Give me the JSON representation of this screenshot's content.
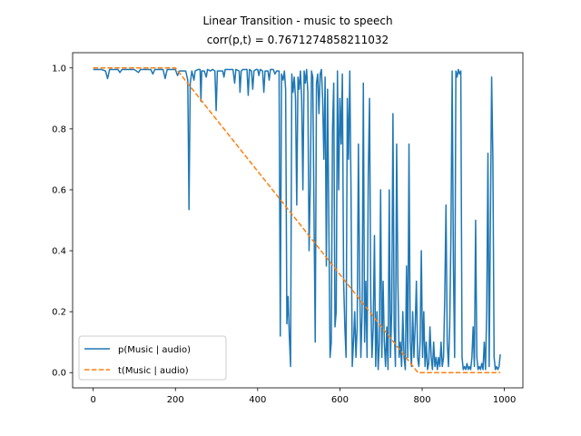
{
  "chart_data": {
    "type": "line",
    "title": "Linear Transition - music to speech",
    "subtitle": "corr(p,t) = 0.7671274858211032",
    "xlabel": "",
    "ylabel": "",
    "xlim": [
      -50,
      1045
    ],
    "ylim": [
      -0.05,
      1.05
    ],
    "x_ticks": [
      0,
      200,
      400,
      600,
      800,
      1000
    ],
    "y_ticks": [
      0.0,
      0.2,
      0.4,
      0.6,
      0.8,
      1.0
    ],
    "x_tick_labels": [
      "0",
      "200",
      "400",
      "600",
      "800",
      "1000"
    ],
    "y_tick_labels": [
      "0.0",
      "0.2",
      "0.4",
      "0.6",
      "0.8",
      "1.0"
    ],
    "grid": false,
    "legend_position": "lower-left",
    "series": [
      {
        "name": "p(Music | audio)",
        "color": "#1f77b4",
        "style": "solid",
        "points": [
          [
            0,
            0.995
          ],
          [
            20,
            0.995
          ],
          [
            30,
            0.99
          ],
          [
            35,
            0.965
          ],
          [
            40,
            0.995
          ],
          [
            60,
            0.995
          ],
          [
            65,
            0.985
          ],
          [
            70,
            0.995
          ],
          [
            100,
            0.995
          ],
          [
            110,
            0.985
          ],
          [
            115,
            0.995
          ],
          [
            140,
            0.995
          ],
          [
            145,
            0.98
          ],
          [
            150,
            0.995
          ],
          [
            170,
            0.995
          ],
          [
            175,
            0.965
          ],
          [
            180,
            0.995
          ],
          [
            200,
            0.995
          ],
          [
            205,
            0.975
          ],
          [
            210,
            0.99
          ],
          [
            225,
            0.99
          ],
          [
            230,
            0.96
          ],
          [
            233,
            0.535
          ],
          [
            236,
            0.95
          ],
          [
            240,
            0.99
          ],
          [
            245,
            0.96
          ],
          [
            248,
            0.99
          ],
          [
            255,
            0.995
          ],
          [
            260,
            0.995
          ],
          [
            262,
            0.89
          ],
          [
            264,
            0.99
          ],
          [
            270,
            0.99
          ],
          [
            275,
            0.97
          ],
          [
            278,
            0.995
          ],
          [
            285,
            0.99
          ],
          [
            290,
            0.995
          ],
          [
            296,
            0.99
          ],
          [
            299,
            0.86
          ],
          [
            302,
            0.99
          ],
          [
            315,
            0.99
          ],
          [
            318,
            0.97
          ],
          [
            321,
            0.995
          ],
          [
            340,
            0.995
          ],
          [
            344,
            0.95
          ],
          [
            347,
            0.995
          ],
          [
            355,
            0.99
          ],
          [
            357,
            0.92
          ],
          [
            360,
            0.99
          ],
          [
            364,
            0.995
          ],
          [
            374,
            0.995
          ],
          [
            377,
            0.91
          ],
          [
            380,
            0.995
          ],
          [
            385,
            0.99
          ],
          [
            388,
            0.93
          ],
          [
            391,
            0.99
          ],
          [
            396,
            0.995
          ],
          [
            400,
            0.995
          ],
          [
            403,
            0.975
          ],
          [
            406,
            0.995
          ],
          [
            412,
            0.99
          ],
          [
            415,
            0.92
          ],
          [
            418,
            0.99
          ],
          [
            425,
            0.99
          ],
          [
            428,
            0.96
          ],
          [
            431,
            0.995
          ],
          [
            438,
            0.995
          ],
          [
            442,
            0.98
          ],
          [
            446,
            0.99
          ],
          [
            452,
            0.99
          ],
          [
            455,
            0.12
          ],
          [
            458,
            0.98
          ],
          [
            462,
            0.96
          ],
          [
            465,
            0.99
          ],
          [
            468,
            0.93
          ],
          [
            471,
            0.16
          ],
          [
            474,
            0.25
          ],
          [
            477,
            0.12
          ],
          [
            480,
            0.02
          ],
          [
            483,
            0.98
          ],
          [
            486,
            0.92
          ],
          [
            489,
            0.97
          ],
          [
            492,
            0.9
          ],
          [
            495,
            0.55
          ],
          [
            498,
            0.97
          ],
          [
            501,
            0.93
          ],
          [
            504,
            0.99
          ],
          [
            507,
            0.9
          ],
          [
            510,
            0.6
          ],
          [
            513,
            0.99
          ],
          [
            516,
            0.95
          ],
          [
            519,
            0.995
          ],
          [
            522,
            0.92
          ],
          [
            525,
            0.4
          ],
          [
            528,
            0.62
          ],
          [
            531,
            0.99
          ],
          [
            534,
            0.97
          ],
          [
            537,
            0.52
          ],
          [
            540,
            0.1
          ],
          [
            543,
            0.95
          ],
          [
            546,
            0.98
          ],
          [
            549,
            0.85
          ],
          [
            552,
            0.98
          ],
          [
            555,
            0.995
          ],
          [
            558,
            0.9
          ],
          [
            561,
            0.7
          ],
          [
            564,
            0.97
          ],
          [
            567,
            0.35
          ],
          [
            570,
            0.93
          ],
          [
            573,
            0.5
          ],
          [
            576,
            0.05
          ],
          [
            579,
            0.1
          ],
          [
            582,
            0.8
          ],
          [
            585,
            0.95
          ],
          [
            588,
            0.15
          ],
          [
            591,
            0.2
          ],
          [
            594,
            0.99
          ],
          [
            597,
            0.6
          ],
          [
            600,
            0.9
          ],
          [
            603,
            0.75
          ],
          [
            606,
            0.98
          ],
          [
            609,
            0.3
          ],
          [
            612,
            0.15
          ],
          [
            615,
            0.05
          ],
          [
            618,
            0.9
          ],
          [
            621,
            0.7
          ],
          [
            624,
            0.99
          ],
          [
            627,
            0.6
          ],
          [
            630,
            0.02
          ],
          [
            633,
            0.1
          ],
          [
            636,
            0.2
          ],
          [
            639,
            0.05
          ],
          [
            642,
            0.15
          ],
          [
            645,
            0.75
          ],
          [
            648,
            0.3
          ],
          [
            651,
            0.05
          ],
          [
            654,
            0.2
          ],
          [
            657,
            0.95
          ],
          [
            660,
            0.1
          ],
          [
            663,
            0.3
          ],
          [
            666,
            0.05
          ],
          [
            669,
            0.65
          ],
          [
            672,
            0.9
          ],
          [
            675,
            0.25
          ],
          [
            678,
            0.05
          ],
          [
            681,
            0.15
          ],
          [
            684,
            0.45
          ],
          [
            687,
            0.02
          ],
          [
            690,
            0.2
          ],
          [
            693,
            0.01
          ],
          [
            696,
            0.1
          ],
          [
            699,
            0.6
          ],
          [
            702,
            0.05
          ],
          [
            705,
            0.3
          ],
          [
            708,
            0.1
          ],
          [
            711,
            0.02
          ],
          [
            714,
            0.15
          ],
          [
            717,
            0.01
          ],
          [
            720,
            0.6
          ],
          [
            723,
            0.05
          ],
          [
            726,
            0.2
          ],
          [
            729,
            0.85
          ],
          [
            732,
            0.15
          ],
          [
            735,
            0.02
          ],
          [
            738,
            0.75
          ],
          [
            741,
            0.3
          ],
          [
            744,
            0.05
          ],
          [
            747,
            0.1
          ],
          [
            750,
            0.02
          ],
          [
            753,
            0.2
          ],
          [
            756,
            0.05
          ],
          [
            759,
            0.01
          ],
          [
            762,
            0.35
          ],
          [
            765,
            0.05
          ],
          [
            768,
            0.75
          ],
          [
            771,
            0.1
          ],
          [
            774,
            0.02
          ],
          [
            777,
            0.2
          ],
          [
            780,
            0.05
          ],
          [
            783,
            0.15
          ],
          [
            786,
            0.3
          ],
          [
            789,
            0.05
          ],
          [
            792,
            0.02
          ],
          [
            795,
            0.1
          ],
          [
            798,
            0.4
          ],
          [
            801,
            0.05
          ],
          [
            804,
            0.2
          ],
          [
            807,
            0.02
          ],
          [
            810,
            0.1
          ],
          [
            813,
            0.01
          ],
          [
            816,
            0.03
          ],
          [
            819,
            0.15
          ],
          [
            822,
            0.05
          ],
          [
            825,
            0.01
          ],
          [
            828,
            0.1
          ],
          [
            831,
            0.02
          ],
          [
            834,
            0.05
          ],
          [
            837,
            0.01
          ],
          [
            840,
            0.05
          ],
          [
            843,
            0.02
          ],
          [
            846,
            0.1
          ],
          [
            849,
            0.02
          ],
          [
            852,
            0.05
          ],
          [
            855,
            0.25
          ],
          [
            858,
            0.55
          ],
          [
            861,
            0.1
          ],
          [
            864,
            0.02
          ],
          [
            867,
            0.15
          ],
          [
            870,
            0.45
          ],
          [
            873,
            0.99
          ],
          [
            876,
            0.35
          ],
          [
            879,
            0.05
          ],
          [
            882,
            0.99
          ],
          [
            885,
            0.97
          ],
          [
            888,
            0.995
          ],
          [
            891,
            0.98
          ],
          [
            894,
            0.99
          ],
          [
            897,
            0.05
          ],
          [
            900,
            0.01
          ],
          [
            903,
            0.02
          ],
          [
            906,
            0.01
          ],
          [
            909,
            0.03
          ],
          [
            912,
            0.01
          ],
          [
            915,
            0.02
          ],
          [
            918,
            0.01
          ],
          [
            921,
            0.05
          ],
          [
            924,
            0.15
          ],
          [
            927,
            0.02
          ],
          [
            930,
            0.5
          ],
          [
            933,
            0.05
          ],
          [
            936,
            0.01
          ],
          [
            939,
            0.02
          ],
          [
            942,
            0.01
          ],
          [
            945,
            0.03
          ],
          [
            948,
            0.01
          ],
          [
            951,
            0.1
          ],
          [
            954,
            0.01
          ],
          [
            957,
            0.2
          ],
          [
            960,
            0.72
          ],
          [
            963,
            0.02
          ],
          [
            966,
            0.5
          ],
          [
            969,
            0.97
          ],
          [
            972,
            0.7
          ],
          [
            975,
            0.05
          ],
          [
            978,
            0.01
          ],
          [
            981,
            0.02
          ],
          [
            984,
            0.01
          ],
          [
            987,
            0.02
          ],
          [
            990,
            0.06
          ]
        ]
      },
      {
        "name": "t(Music | audio)",
        "color": "#ff7f0e",
        "style": "dashed",
        "points": [
          [
            0,
            1.0
          ],
          [
            200,
            1.0
          ],
          [
            790,
            0.0
          ],
          [
            990,
            0.0
          ]
        ]
      }
    ]
  }
}
